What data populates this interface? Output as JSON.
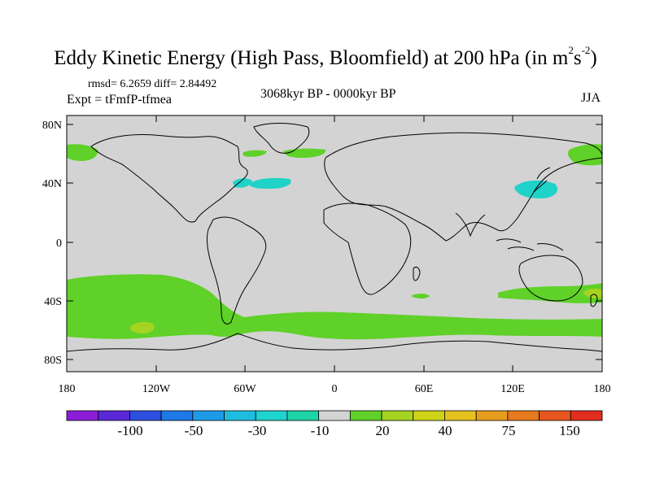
{
  "title_main": "Eddy Kinetic Energy (High Pass, Bloomfield) at 200 hPa (in m",
  "title_sup1": "2",
  "title_mid": "s",
  "title_sup2": "-2",
  "title_end": ")",
  "stats": "rmsd= 6.2659 diff= 2.84492",
  "expt": "Expt = tFmfP-tfmea",
  "period": "3068kyr BP - 0000kyr BP",
  "season": "JJA",
  "lat_ticks": [
    "80N",
    "40N",
    "0",
    "40S",
    "80S"
  ],
  "lon_ticks": [
    "180",
    "120W",
    "60W",
    "0",
    "60E",
    "120E",
    "180"
  ],
  "colorbar_labels": [
    "-100",
    "-50",
    "-30",
    "-10",
    "20",
    "40",
    "75",
    "150"
  ],
  "colors": {
    "land_ocean_background": "#d3d3d3",
    "positive_20_30": "#5fd128",
    "positive_30_40": "#a5d321",
    "negative_10_20": "#1fd3c9",
    "coastline": "#000000"
  },
  "colorbar_colors": [
    "#8c1ed9",
    "#5a28d8",
    "#2d4fe0",
    "#1e78e6",
    "#1e9be6",
    "#1ebde0",
    "#1ed3d0",
    "#1ed3a8",
    "#d3d3d3",
    "#5fd128",
    "#a5d321",
    "#cfd318",
    "#e6c21e",
    "#e69d1e",
    "#e67a1e",
    "#e6561e",
    "#e22d1e"
  ]
}
